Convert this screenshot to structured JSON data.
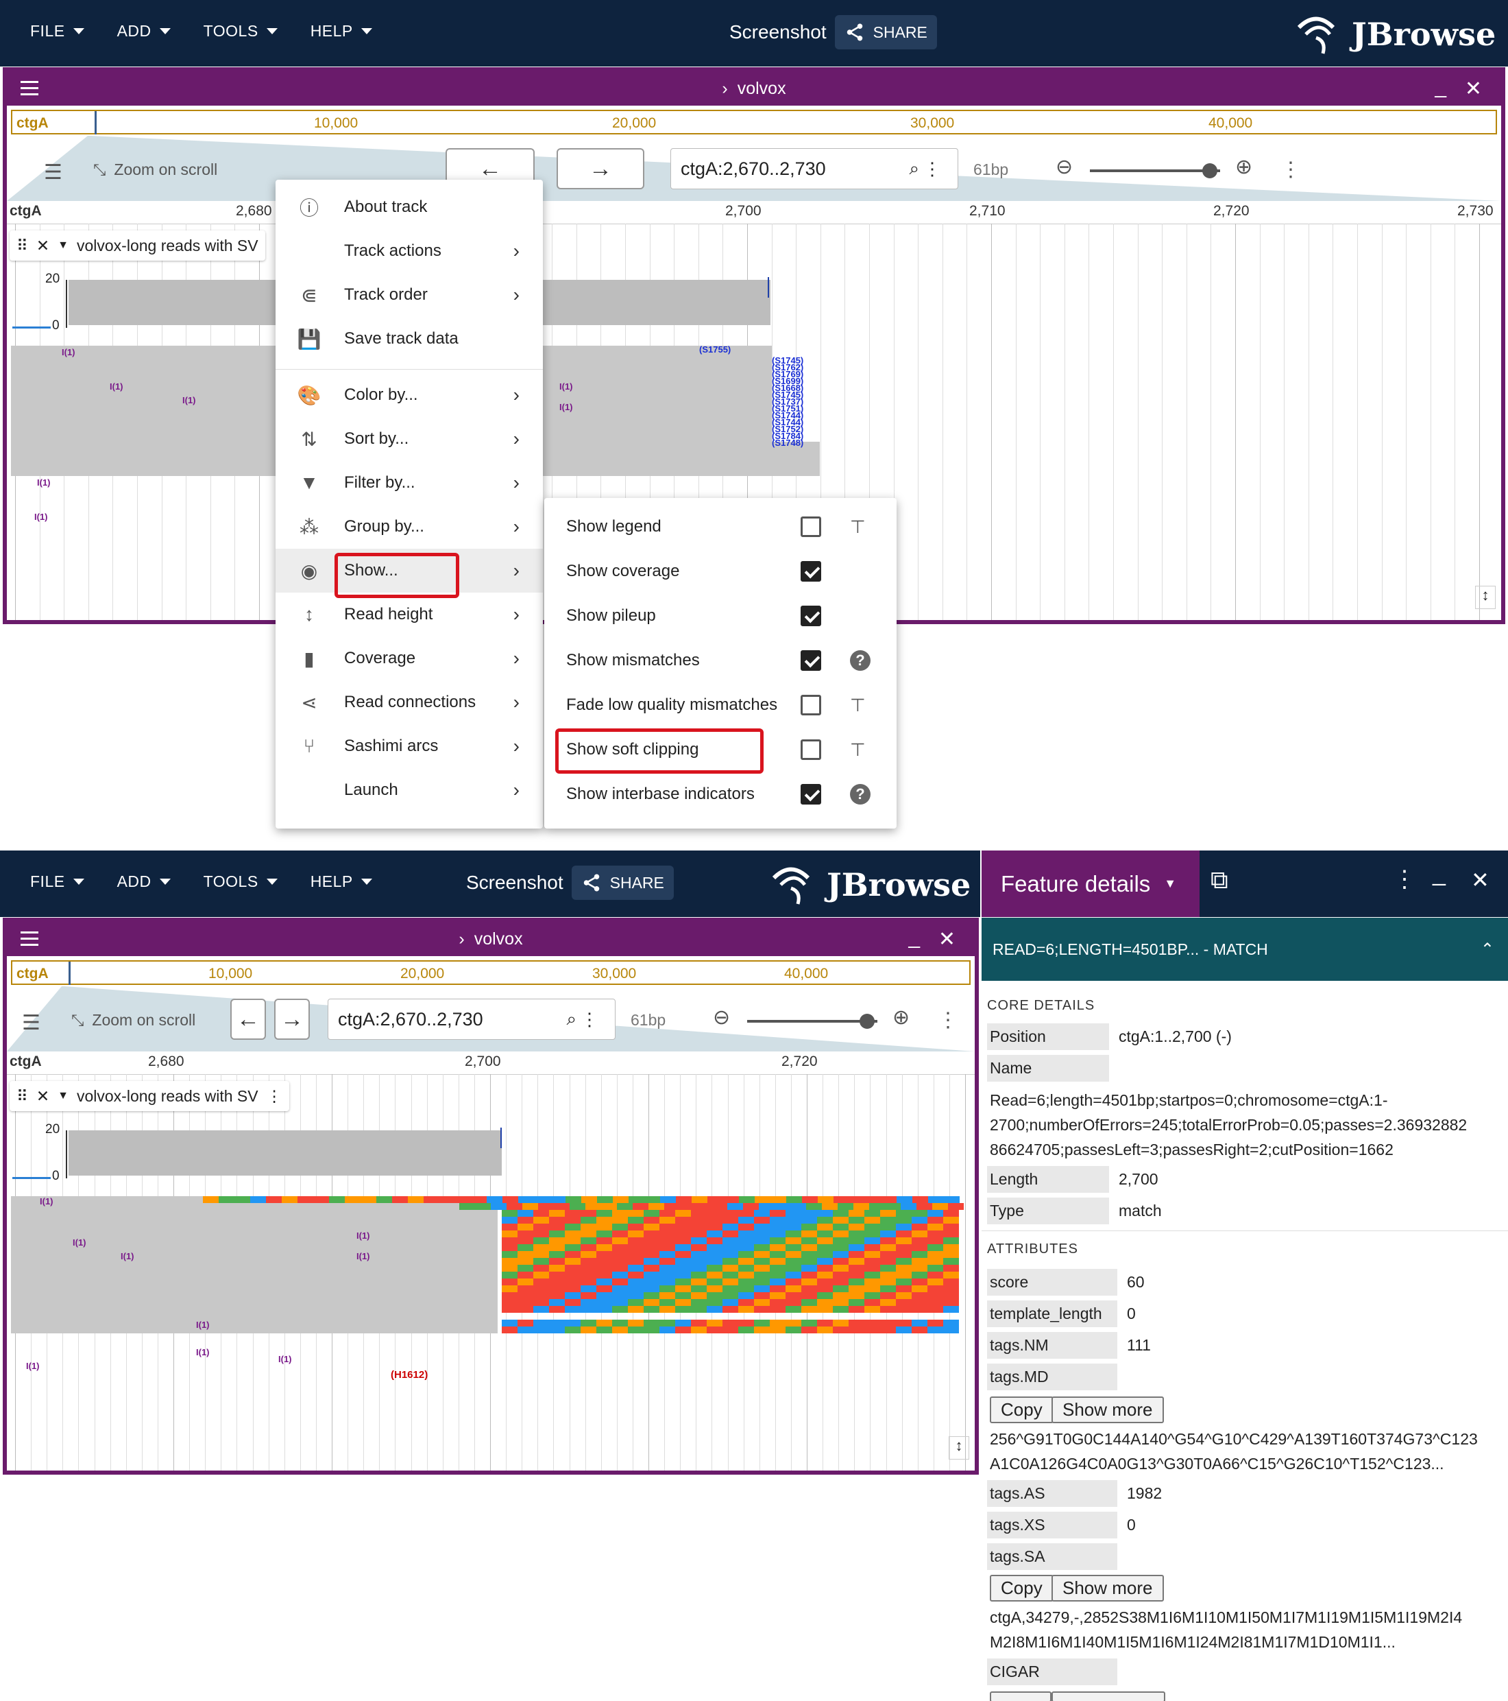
{
  "menubar": {
    "items": [
      "FILE",
      "ADD",
      "TOOLS",
      "HELP"
    ],
    "screenshot_label": "Screenshot",
    "share_label": "SHARE",
    "logo_text": "JBrowse"
  },
  "view": {
    "title": "volvox",
    "ruler_ref": "ctgA",
    "ruler_labels": [
      "10,000",
      "20,000",
      "30,000",
      "40,000"
    ],
    "zoom_on_scroll": "Zoom on scroll",
    "locstring": "ctgA:2,670..2,730",
    "bp_label": "61bp",
    "ref_label": "ctgA",
    "ticks_top": [
      "2,680",
      "2,700",
      "2,710",
      "2,720",
      "2,730"
    ],
    "ticks_bottom": [
      "2,680",
      "2,700",
      "2,720"
    ],
    "track_name": "volvox-long reads with SV",
    "coverage_max": "20",
    "coverage_min": "0"
  },
  "track_menu": {
    "items": [
      {
        "label": "About track",
        "icon": "info-icon"
      },
      {
        "label": "Track actions",
        "icon": ""
      },
      {
        "label": "Track order",
        "icon": "list-order-icon"
      },
      {
        "label": "Save track data",
        "icon": "save-icon"
      },
      {
        "label": "Color by...",
        "icon": "palette-icon"
      },
      {
        "label": "Sort by...",
        "icon": "sort-icon"
      },
      {
        "label": "Filter by...",
        "icon": "filter-icon"
      },
      {
        "label": "Group by...",
        "icon": "group-icon"
      },
      {
        "label": "Show...",
        "icon": "eye-icon"
      },
      {
        "label": "Read height",
        "icon": "height-icon"
      },
      {
        "label": "Coverage",
        "icon": "bar-chart-icon"
      },
      {
        "label": "Read connections",
        "icon": "share-icon"
      },
      {
        "label": "Sashimi arcs",
        "icon": "arcs-icon"
      },
      {
        "label": "Launch",
        "icon": ""
      }
    ]
  },
  "show_menu": {
    "items": [
      {
        "label": "Show legend",
        "checked": false,
        "extra": "pin"
      },
      {
        "label": "Show coverage",
        "checked": true,
        "extra": ""
      },
      {
        "label": "Show pileup",
        "checked": true,
        "extra": ""
      },
      {
        "label": "Show mismatches",
        "checked": true,
        "extra": "help"
      },
      {
        "label": "Fade low quality mismatches",
        "checked": false,
        "extra": "pin"
      },
      {
        "label": "Show soft clipping",
        "checked": false,
        "extra": "pin"
      },
      {
        "label": "Show interbase indicators",
        "checked": true,
        "extra": "help"
      }
    ]
  },
  "softclip_labels": [
    "(S1755)",
    "(S1745)",
    "(S1762)",
    "(S1769)",
    "(S1699)",
    "(S1668)",
    "(S1745)",
    "(S1737)",
    "(S1751)",
    "(S1744)",
    "(S1744)",
    "(S1752)",
    "(S1784)",
    "(S1748)"
  ],
  "insert_label": "I(1)",
  "hardclip_label": "(H1612)",
  "feature_panel": {
    "title": "Feature details",
    "section_title": "READ=6;LENGTH=4501BP... - MATCH",
    "core_header": "CORE DETAILS",
    "position_label": "Position",
    "position_value": "ctgA:1..2,700 (-)",
    "name_label": "Name",
    "name_value_lines": [
      "Read=6;length=4501bp;startpos=0;chromosome=ctgA:1-",
      "2700;numberOfErrors=245;totalErrorProb=0.05;passes=2.36932882",
      "86624705;passesLeft=3;passesRight=2;cutPosition=1662"
    ],
    "length_label": "Length",
    "length_value": "2,700",
    "type_label": "Type",
    "type_value": "match",
    "attributes_header": "ATTRIBUTES",
    "score_label": "score",
    "score_value": "60",
    "template_length_label": "template_length",
    "template_length_value": "0",
    "nm_label": "tags.NM",
    "nm_value": "111",
    "md_label": "tags.MD",
    "copy_label": "Copy",
    "show_more_label": "Show more",
    "md_value_lines": [
      "256^G91T0G0C144A140^G54^G10^C429^A139T160T374G73^C123",
      "A1C0A126G4C0A0G13^G30T0A66^C15^G26C10^T152^C123..."
    ],
    "as_label": "tags.AS",
    "as_value": "1982",
    "xs_label": "tags.XS",
    "xs_value": "0",
    "sa_label": "tags.SA",
    "sa_value_lines": [
      "ctgA,34279,-,2852S38M1I6M1I10M1I50M1I7M1I19M1I5M1I19M2I4",
      "M2I8M1I6M1I40M1I5M1I6M1I24M2I81M1I7M1D10M1I1..."
    ],
    "cigar_label": "CIGAR"
  },
  "colors": {
    "nav": "#0e233e",
    "view_border": "#6a1b6b",
    "panel_header": "#10535f",
    "highlight": "#d9141e",
    "base_A": "#4caf50",
    "base_C": "#2196f3",
    "base_G": "#ff9800",
    "base_T": "#f44336"
  }
}
